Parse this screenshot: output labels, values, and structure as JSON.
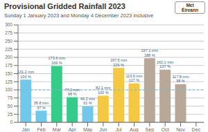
{
  "chart_data": {
    "type": "bar",
    "title": "Provisional Gridded Rainfall 2023",
    "subtitle": "Sunday 1 January 2023 and Monday 4 December 2023 inclusive",
    "annotations": [
      "Met",
      "Éireann"
    ],
    "categories": [
      "Jan",
      "Feb",
      "Mar",
      "Apr",
      "May",
      "Jun",
      "Jul",
      "Aug",
      "Sep",
      "Oct",
      "Nov",
      "Dec"
    ],
    "values": [
      131.2,
      35.8,
      173.6,
      77.2,
      49.2,
      82.1,
      167.5,
      119.6,
      197.1,
      162.1,
      117.8,
      0
    ],
    "value_labels": [
      "131.2 mm",
      "35.8 mm",
      "173.6 mm",
      "77.2 mm",
      "49.2 mm",
      "82.1 mm",
      "167.5 mm",
      "119.6 mm",
      "197.1 mm",
      "162.1 mm",
      "117.8 mm",
      null
    ],
    "percent_labels": [
      "100 %",
      "37 %",
      "169 %",
      "98 %",
      "61 %",
      "100 %",
      "226 %",
      "117 %",
      "188 %",
      "137 %",
      "98 %",
      null
    ],
    "colors": [
      "#72c8ea",
      "#72c8ea",
      "#33cc88",
      "#33cc88",
      "#72c8ea",
      "#f5c842",
      "#f5c842",
      "#f5c842",
      "#b8a898",
      "#b8a898",
      "#b8a898",
      "#b8a898"
    ],
    "reference_line": 100,
    "ylim": [
      0,
      300
    ],
    "yticks": [
      0,
      25,
      50,
      75,
      100,
      125,
      150,
      175,
      200,
      225,
      250,
      275,
      300
    ],
    "grid": true,
    "data_labels": true
  }
}
